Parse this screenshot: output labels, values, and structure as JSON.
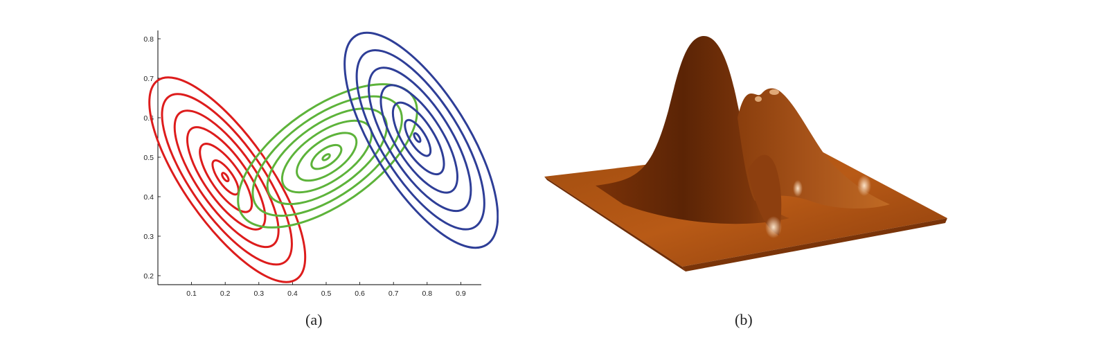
{
  "panel_a": {
    "caption": "(a)"
  },
  "panel_b": {
    "caption": "(b)"
  },
  "chart_data": [
    {
      "type": "contour",
      "panel": "(a)",
      "xticks": [
        0.1,
        0.2,
        0.3,
        0.4,
        0.5,
        0.6,
        0.7,
        0.8,
        0.9
      ],
      "yticks": [
        0.2,
        0.3,
        0.4,
        0.5,
        0.6,
        0.7,
        0.8
      ],
      "xlim": [
        0,
        1
      ],
      "ylim": [
        0.18,
        0.83
      ],
      "components": [
        {
          "color": "#dd1c1c",
          "mean": [
            0.2,
            0.45
          ],
          "orientation": "negative correlation",
          "contour_levels": 7
        },
        {
          "color": "#5db33a",
          "mean": [
            0.5,
            0.5
          ],
          "orientation": "positive correlation",
          "contour_levels": 7
        },
        {
          "color": "#2e3e97",
          "mean": [
            0.77,
            0.55
          ],
          "orientation": "negative correlation",
          "contour_levels": 7
        }
      ]
    },
    {
      "type": "surface",
      "panel": "(b)",
      "description_color": "#9a4a14",
      "peaks": 3
    }
  ]
}
